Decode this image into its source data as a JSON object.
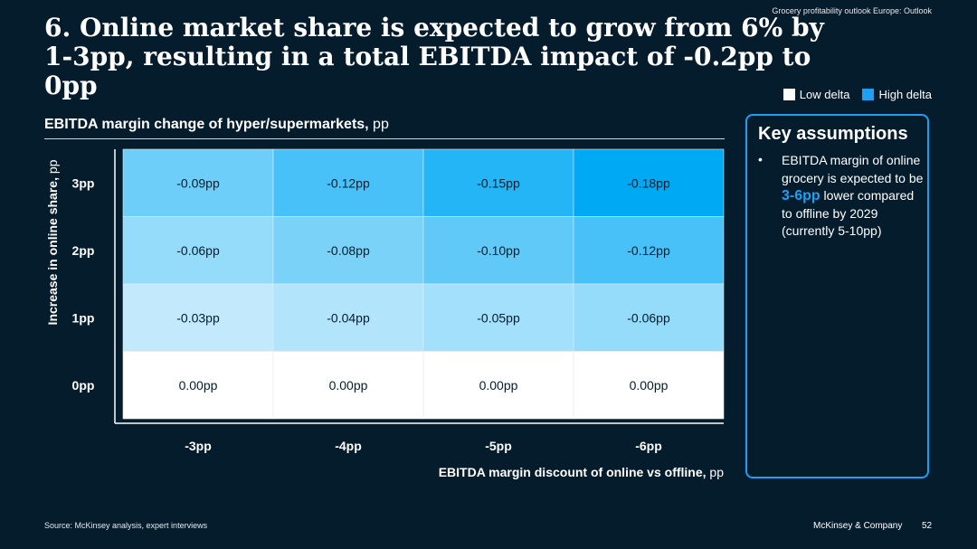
{
  "header": {
    "tag": "Grocery profitability outlook Europe: Outlook",
    "title": "6. Online market share is expected to grow from 6% by 1-3pp, resulting in a total EBITDA impact of -0.2pp to 0pp"
  },
  "legend": {
    "low_label": "Low delta",
    "high_label": "High delta",
    "low_color": "#ffffff",
    "high_color": "#1f9ff3"
  },
  "chart_heading": {
    "bold": "EBITDA margin change of hyper/supermarkets,",
    "unit": " pp"
  },
  "chart_data": {
    "type": "heatmap",
    "x_title": "EBITDA margin discount of online vs offline,",
    "x_unit": " pp",
    "y_title": "Increase in online share,",
    "y_unit": " pp",
    "x_categories": [
      "-3pp",
      "-4pp",
      "-5pp",
      "-6pp"
    ],
    "y_categories": [
      "3pp",
      "2pp",
      "1pp",
      "0pp"
    ],
    "values": [
      [
        -0.09,
        -0.12,
        -0.15,
        -0.18
      ],
      [
        -0.06,
        -0.08,
        -0.1,
        -0.12
      ],
      [
        -0.03,
        -0.04,
        -0.05,
        -0.06
      ],
      [
        0.0,
        0.0,
        0.0,
        0.0
      ]
    ],
    "cell_labels": [
      [
        "-0.09pp",
        "-0.12pp",
        "-0.15pp",
        "-0.18pp"
      ],
      [
        "-0.06pp",
        "-0.08pp",
        "-0.10pp",
        "-0.12pp"
      ],
      [
        "-0.03pp",
        "-0.04pp",
        "-0.05pp",
        "-0.06pp"
      ],
      [
        "0.00pp",
        "0.00pp",
        "0.00pp",
        "0.00pp"
      ]
    ],
    "color_low": "#ffffff",
    "color_high": "#00a9f4"
  },
  "assumptions": {
    "title": "Key assumptions",
    "bullet": "•",
    "text_before": "EBITDA margin of online grocery is expected to be ",
    "highlight": "3-6pp",
    "text_after": " lower compared to offline by 2029 (currently 5-10pp)"
  },
  "footer": {
    "source": "Source: McKinsey analysis, expert interviews",
    "brand": "McKinsey & Company",
    "page": "52"
  }
}
